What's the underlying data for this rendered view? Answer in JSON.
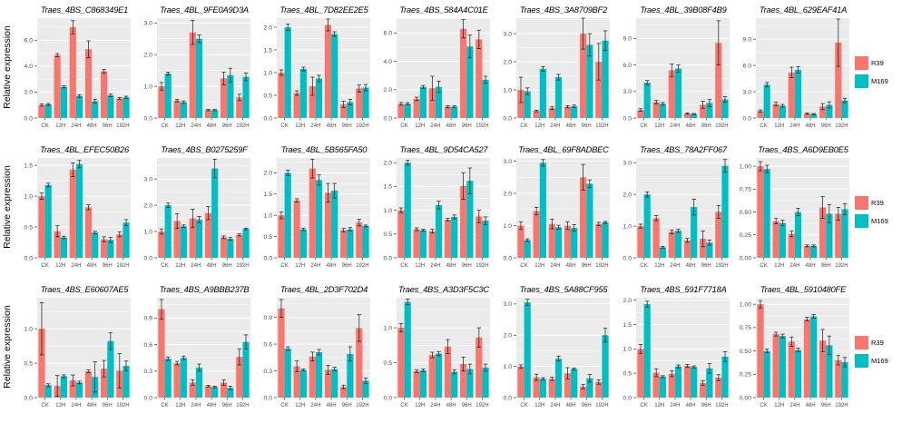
{
  "ylabel": "Relative expression",
  "legend": {
    "series": [
      {
        "label": "R39",
        "color": "#F8766D"
      },
      {
        "label": "M169",
        "color": "#00BFC4"
      }
    ]
  },
  "colors": {
    "r39": "#F8766D",
    "m169": "#00BFC4",
    "panel_bg": "#EBEBEB",
    "grid": "#FFFFFF",
    "tick_text": "#4D4D4D",
    "error_bar": "#1A1A1A"
  },
  "chart_data": {
    "type": "bar",
    "grid": {
      "rows": 3,
      "cols": 7
    },
    "categories": [
      "CK",
      "12H",
      "24H",
      "48H",
      "96H",
      "192H"
    ],
    "series_names": [
      "R39",
      "M169"
    ],
    "ylabel": "Relative expression",
    "legend_position": "right-of-each-row",
    "error_bars": true,
    "panels": [
      {
        "title": "Traes_4BS_C868349E1",
        "yticks": [
          0,
          2,
          4,
          6
        ],
        "ytick_labels": [
          "0.0",
          "2.0",
          "4.0",
          "6.0"
        ],
        "ymax": 7.7,
        "r39": [
          1.0,
          4.85,
          7.0,
          5.3,
          3.6,
          1.5
        ],
        "r39_err": [
          0.08,
          0.12,
          0.5,
          0.65,
          0.15,
          0.08
        ],
        "m169": [
          1.05,
          2.4,
          1.7,
          1.3,
          1.75,
          1.6
        ],
        "m169_err": [
          0.07,
          0.08,
          0.1,
          0.15,
          0.1,
          0.08
        ]
      },
      {
        "title": "Traes_4BL_9FE0A9D3A",
        "yticks": [
          0,
          1,
          2,
          3
        ],
        "ytick_labels": [
          "0.0",
          "1.0",
          "2.0",
          "3.0"
        ],
        "ymax": 3.15,
        "r39": [
          1.0,
          0.55,
          2.7,
          0.25,
          1.25,
          0.65
        ],
        "r39_err": [
          0.12,
          0.04,
          0.38,
          0.02,
          0.2,
          0.1
        ],
        "m169": [
          1.4,
          0.5,
          2.5,
          0.25,
          1.35,
          1.3
        ],
        "m169_err": [
          0.05,
          0.04,
          0.12,
          0.02,
          0.22,
          0.12
        ]
      },
      {
        "title": "Traes_4BL_7D82EE2E5",
        "yticks": [
          0,
          0.5,
          1,
          1.5,
          2
        ],
        "ytick_labels": [
          "0.0",
          "0.5",
          "1.0",
          "1.5",
          "2.0"
        ],
        "ymax": 2.2,
        "r39": [
          1.0,
          0.55,
          0.7,
          2.05,
          0.3,
          0.65
        ],
        "r39_err": [
          0.06,
          0.05,
          0.2,
          0.13,
          0.07,
          0.08
        ],
        "m169": [
          2.0,
          1.08,
          0.87,
          1.85,
          0.35,
          0.67
        ],
        "m169_err": [
          0.07,
          0.04,
          0.07,
          0.05,
          0.06,
          0.07
        ]
      },
      {
        "title": "Traes_4BS_584A4C01E",
        "yticks": [
          0,
          2,
          4,
          6
        ],
        "ytick_labels": [
          "0.0",
          "2.0",
          "4.0",
          "6.0"
        ],
        "ymax": 7.05,
        "r39": [
          1.0,
          1.35,
          2.1,
          0.8,
          6.3,
          5.55
        ],
        "r39_err": [
          0.1,
          0.12,
          0.85,
          0.08,
          0.65,
          0.65
        ],
        "m169": [
          1.0,
          2.2,
          2.2,
          0.8,
          5.05,
          2.7
        ],
        "m169_err": [
          0.08,
          0.1,
          0.4,
          0.06,
          0.8,
          0.25
        ]
      },
      {
        "title": "Traes_4BS_3A8709BF2",
        "yticks": [
          0,
          1,
          2,
          3
        ],
        "ytick_labels": [
          "0.0",
          "1.0",
          "2.0",
          "3.0"
        ],
        "ymax": 3.55,
        "r39": [
          1.0,
          0.25,
          0.35,
          0.4,
          3.0,
          2.0
        ],
        "r39_err": [
          0.45,
          0.03,
          0.05,
          0.04,
          0.55,
          0.65
        ],
        "m169": [
          0.95,
          1.75,
          1.45,
          0.42,
          2.6,
          2.75
        ],
        "m169_err": [
          0.12,
          0.08,
          0.1,
          0.04,
          0.4,
          0.35
        ]
      },
      {
        "title": "Traes_4BL_39B08F4B9",
        "yticks": [
          0,
          3,
          6,
          9
        ],
        "ytick_labels": [
          "0.0",
          "3.0",
          "6.0",
          "9.0"
        ],
        "ymax": 11.3,
        "r39": [
          0.9,
          1.8,
          5.4,
          0.5,
          1.5,
          8.5
        ],
        "r39_err": [
          0.15,
          0.2,
          0.7,
          0.07,
          0.4,
          2.5
        ],
        "m169": [
          4.0,
          1.6,
          5.6,
          0.45,
          1.7,
          2.1
        ],
        "m169_err": [
          0.25,
          0.15,
          0.4,
          0.06,
          0.4,
          0.3
        ]
      },
      {
        "title": "Traes_4BL_629EAF41A",
        "yticks": [
          0,
          3,
          6,
          9
        ],
        "ytick_labels": [
          "0.0",
          "3.0",
          "6.0",
          "9.0"
        ],
        "ymax": 11.4,
        "r39": [
          0.8,
          1.6,
          5.2,
          0.5,
          1.3,
          8.6
        ],
        "r39_err": [
          0.12,
          0.2,
          0.6,
          0.07,
          0.35,
          2.7
        ],
        "m169": [
          3.8,
          1.4,
          5.5,
          0.45,
          1.5,
          2.0
        ],
        "m169_err": [
          0.25,
          0.15,
          0.35,
          0.06,
          0.35,
          0.25
        ]
      },
      {
        "title": "Traes_4BL_EFEC50B26",
        "yticks": [
          0,
          0.5,
          1,
          1.5
        ],
        "ytick_labels": [
          "0.0",
          "0.5",
          "1.0",
          "1.5"
        ],
        "ymax": 1.62,
        "r39": [
          1.0,
          0.43,
          1.43,
          0.82,
          0.3,
          0.38
        ],
        "r39_err": [
          0.05,
          0.09,
          0.11,
          0.04,
          0.04,
          0.04
        ],
        "m169": [
          1.18,
          0.33,
          1.52,
          0.41,
          0.29,
          0.57
        ],
        "m169_err": [
          0.03,
          0.02,
          0.06,
          0.02,
          0.04,
          0.05
        ]
      },
      {
        "title": "Traes_4BS_B0275259F",
        "yticks": [
          0,
          1,
          2,
          3
        ],
        "ytick_labels": [
          "0.0",
          "1.0",
          "2.0",
          "3.0"
        ],
        "ymax": 3.8,
        "r39": [
          1.0,
          1.4,
          1.5,
          1.7,
          0.78,
          0.87
        ],
        "r39_err": [
          0.1,
          0.28,
          0.35,
          0.25,
          0.05,
          0.04
        ],
        "m169": [
          2.0,
          1.2,
          1.45,
          3.4,
          0.72,
          1.1
        ],
        "m169_err": [
          0.08,
          0.05,
          0.12,
          0.35,
          0.05,
          0.03
        ]
      },
      {
        "title": "Traes_4BL_5B565FA50",
        "yticks": [
          0,
          0.5,
          1,
          1.5,
          2
        ],
        "ytick_labels": [
          "0.0",
          "0.5",
          "1.0",
          "1.5",
          "2.0"
        ],
        "ymax": 2.35,
        "r39": [
          1.0,
          1.35,
          2.1,
          1.53,
          0.65,
          0.83
        ],
        "r39_err": [
          0.08,
          0.04,
          0.22,
          0.22,
          0.04,
          0.08
        ],
        "m169": [
          2.0,
          0.67,
          1.83,
          1.58,
          0.67,
          0.75
        ],
        "m169_err": [
          0.06,
          0.03,
          0.12,
          0.17,
          0.04,
          0.02
        ]
      },
      {
        "title": "Traes_4BL_9D54CA527",
        "yticks": [
          0,
          0.5,
          1,
          1.5,
          2
        ],
        "ytick_labels": [
          "0.0",
          "0.5",
          "1.0",
          "1.5",
          "2.0"
        ],
        "ymax": 2.1,
        "r39": [
          1.0,
          0.6,
          0.56,
          0.8,
          1.51,
          0.87
        ],
        "r39_err": [
          0.05,
          0.03,
          0.04,
          0.03,
          0.28,
          0.13
        ],
        "m169": [
          2.0,
          0.58,
          1.11,
          0.86,
          1.62,
          0.78
        ],
        "m169_err": [
          0.05,
          0.02,
          0.08,
          0.04,
          0.27,
          0.08
        ]
      },
      {
        "title": "Traes_4BL_69F8ADBEC",
        "yticks": [
          0,
          1,
          2,
          3
        ],
        "ytick_labels": [
          "0.0",
          "1.0",
          "2.0",
          "3.0"
        ],
        "ymax": 3.1,
        "r39": [
          1.0,
          1.45,
          1.05,
          1.0,
          2.5,
          1.05
        ],
        "r39_err": [
          0.12,
          0.12,
          0.15,
          0.12,
          0.4,
          0.05
        ],
        "m169": [
          0.55,
          2.95,
          0.95,
          0.93,
          2.3,
          1.1
        ],
        "m169_err": [
          0.04,
          0.1,
          0.06,
          0.1,
          0.12,
          0.03
        ]
      },
      {
        "title": "Traes_4BS_78A2FF067",
        "yticks": [
          0,
          1,
          2,
          3
        ],
        "ytick_labels": [
          "0.0",
          "1.0",
          "2.0",
          "3.0"
        ],
        "ymax": 3.15,
        "r39": [
          1.0,
          1.25,
          0.82,
          0.55,
          0.6,
          1.45
        ],
        "r39_err": [
          0.06,
          0.08,
          0.06,
          0.06,
          0.25,
          0.2
        ],
        "m169": [
          2.0,
          0.33,
          0.85,
          1.6,
          0.48,
          2.9
        ],
        "m169_err": [
          0.08,
          0.03,
          0.05,
          0.25,
          0.08,
          0.2
        ]
      },
      {
        "title": "Traes_4BS_A6D9EB0E5",
        "yticks": [
          0,
          0.25,
          0.5,
          0.75,
          1
        ],
        "ytick_labels": [
          "0.00",
          "0.25",
          "0.50",
          "0.75",
          "1.00"
        ],
        "ymax": 1.09,
        "r39": [
          1.0,
          0.4,
          0.26,
          0.13,
          0.55,
          0.48
        ],
        "r39_err": [
          0.05,
          0.03,
          0.03,
          0.01,
          0.12,
          0.07
        ],
        "m169": [
          0.97,
          0.38,
          0.5,
          0.13,
          0.48,
          0.53
        ],
        "m169_err": [
          0.04,
          0.03,
          0.04,
          0.01,
          0.1,
          0.06
        ]
      },
      {
        "title": "Traes_4BS_E60607AE5",
        "yticks": [
          0,
          0.5,
          1
        ],
        "ytick_labels": [
          "0.0",
          "0.5",
          "1.0"
        ],
        "ymax": 1.45,
        "r39": [
          1.0,
          0.17,
          0.25,
          0.38,
          0.42,
          0.39
        ],
        "r39_err": [
          0.38,
          0.15,
          0.08,
          0.02,
          0.12,
          0.25
        ],
        "m169": [
          0.18,
          0.31,
          0.22,
          0.3,
          0.82,
          0.46
        ],
        "m169_err": [
          0.02,
          0.02,
          0.02,
          0.22,
          0.12,
          0.07
        ]
      },
      {
        "title": "Traes_4BS_A9BBB237B",
        "yticks": [
          0,
          0.3,
          0.6,
          0.9
        ],
        "ytick_labels": [
          "0.0",
          "0.3",
          "0.6",
          "0.9"
        ],
        "ymax": 1.13,
        "r39": [
          1.0,
          0.39,
          0.17,
          0.13,
          0.17,
          0.46
        ],
        "r39_err": [
          0.11,
          0.02,
          0.03,
          0.01,
          0.03,
          0.09
        ],
        "m169": [
          0.44,
          0.45,
          0.34,
          0.12,
          0.11,
          0.63
        ],
        "m169_err": [
          0.02,
          0.02,
          0.04,
          0.01,
          0.02,
          0.08
        ]
      },
      {
        "title": "Traes_4BL_2D3F702D4",
        "yticks": [
          0,
          0.3,
          0.6,
          0.9
        ],
        "ytick_labels": [
          "0.0",
          "0.3",
          "0.6",
          "0.9"
        ],
        "ymax": 1.12,
        "r39": [
          1.0,
          0.35,
          0.46,
          0.31,
          0.12,
          0.78
        ],
        "r39_err": [
          0.1,
          0.06,
          0.05,
          0.05,
          0.02,
          0.15
        ],
        "m169": [
          0.55,
          0.31,
          0.51,
          0.32,
          0.49,
          0.19
        ],
        "m169_err": [
          0.02,
          0.01,
          0.03,
          0.02,
          0.08,
          0.03
        ]
      },
      {
        "title": "Traes_4BS_A3D3F5C3C",
        "yticks": [
          0,
          0.5,
          1
        ],
        "ytick_labels": [
          "0.0",
          "0.5",
          "1.0"
        ],
        "ymax": 1.43,
        "r39": [
          1.0,
          0.38,
          0.61,
          0.73,
          0.48,
          0.86
        ],
        "r39_err": [
          0.06,
          0.02,
          0.04,
          0.1,
          0.1,
          0.14
        ],
        "m169": [
          1.37,
          0.39,
          0.63,
          0.37,
          0.41,
          0.43
        ],
        "m169_err": [
          0.04,
          0.02,
          0.03,
          0.03,
          0.07,
          0.05
        ]
      },
      {
        "title": "Traes_4BS_5A88CF955",
        "yticks": [
          0,
          1,
          2,
          3
        ],
        "ytick_labels": [
          "0.0",
          "1.0",
          "2.0",
          "3.0"
        ],
        "ymax": 3.2,
        "r39": [
          1.0,
          0.65,
          0.6,
          0.78,
          0.35,
          0.5
        ],
        "r39_err": [
          0.05,
          0.1,
          0.05,
          0.18,
          0.07,
          0.07
        ],
        "m169": [
          3.05,
          0.6,
          1.25,
          0.92,
          0.62,
          2.0
        ],
        "m169_err": [
          0.1,
          0.04,
          0.08,
          0.03,
          0.12,
          0.22
        ]
      },
      {
        "title": "Traes_4BS_591F7718A",
        "yticks": [
          0,
          0.5,
          1,
          1.5,
          2
        ],
        "ytick_labels": [
          "0.0",
          "0.5",
          "1.0",
          "1.5",
          "2.0"
        ],
        "ymax": 2.05,
        "r39": [
          1.0,
          0.51,
          0.49,
          0.65,
          0.3,
          0.41
        ],
        "r39_err": [
          0.09,
          0.08,
          0.06,
          0.03,
          0.05,
          0.06
        ],
        "m169": [
          1.92,
          0.43,
          0.64,
          0.63,
          0.6,
          0.84
        ],
        "m169_err": [
          0.06,
          0.02,
          0.03,
          0.02,
          0.1,
          0.1
        ]
      },
      {
        "title": "Traes_4BL_5910480FE",
        "yticks": [
          0,
          0.25,
          0.5,
          0.75,
          1
        ],
        "ytick_labels": [
          "0.00",
          "0.25",
          "0.50",
          "0.75",
          "1.00"
        ],
        "ymax": 1.07,
        "r39": [
          1.0,
          0.68,
          0.6,
          0.84,
          0.61,
          0.4
        ],
        "r39_err": [
          0.04,
          0.02,
          0.05,
          0.02,
          0.12,
          0.05
        ],
        "m169": [
          0.5,
          0.66,
          0.51,
          0.87,
          0.56,
          0.38
        ],
        "m169_err": [
          0.02,
          0.02,
          0.02,
          0.02,
          0.1,
          0.05
        ]
      }
    ]
  }
}
